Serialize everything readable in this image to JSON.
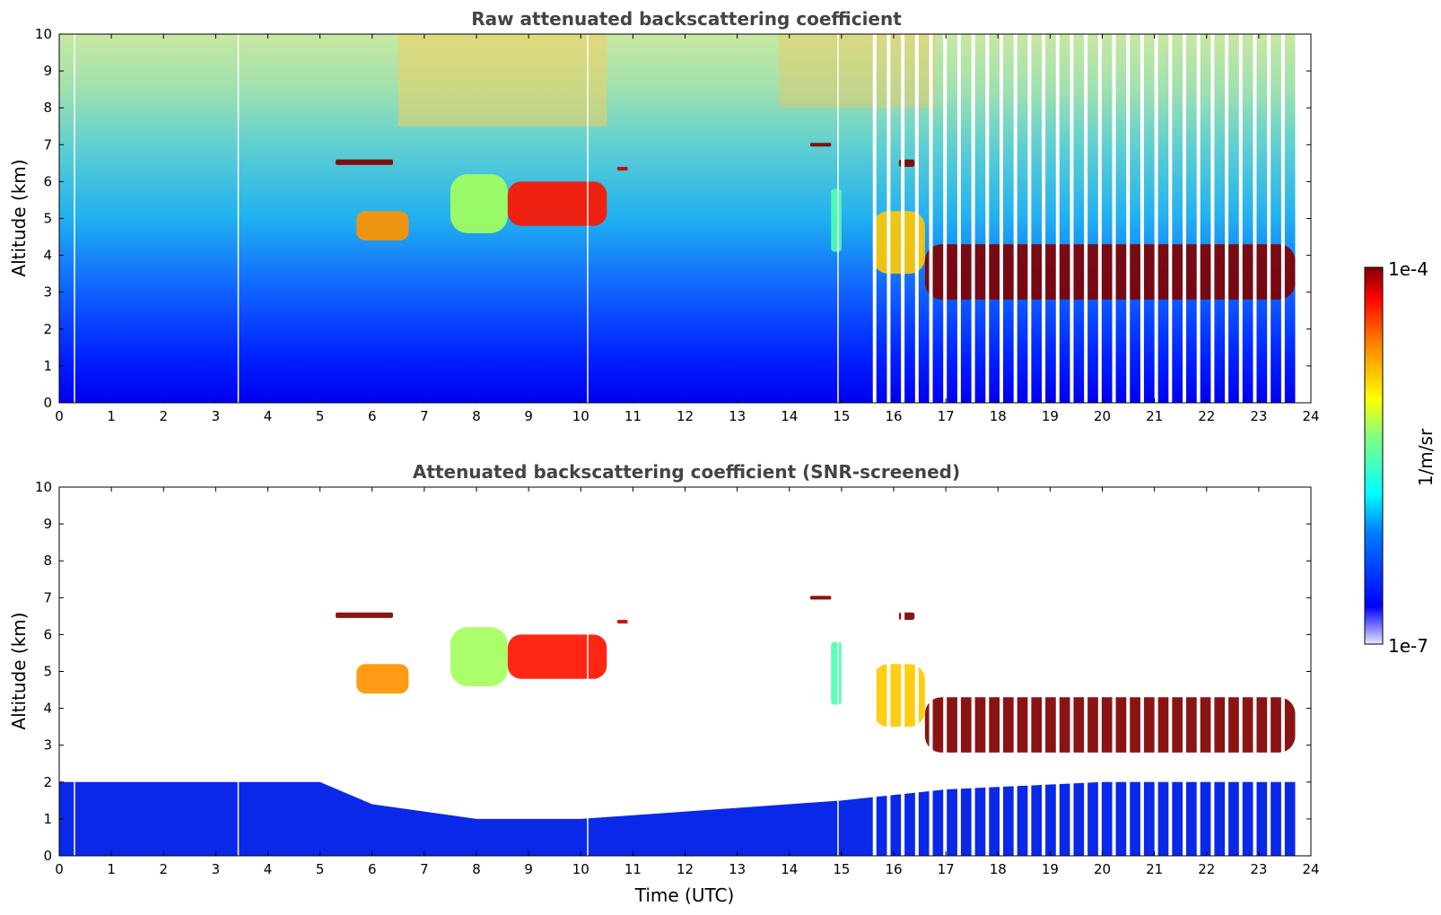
{
  "chart_data": [
    {
      "type": "heatmap",
      "title": "Raw attenuated backscattering coefficient",
      "xlabel": "",
      "ylabel": "Altitude (km)",
      "xlim": [
        0,
        24
      ],
      "ylim": [
        0,
        10
      ],
      "x_ticks": [
        "0",
        "1",
        "2",
        "3",
        "4",
        "5",
        "6",
        "7",
        "8",
        "9",
        "10",
        "11",
        "12",
        "13",
        "14",
        "15",
        "16",
        "17",
        "18",
        "19",
        "20",
        "21",
        "22",
        "23",
        "24"
      ],
      "y_ticks": [
        "0",
        "1",
        "2",
        "3",
        "4",
        "5",
        "6",
        "7",
        "8",
        "9",
        "10"
      ],
      "screened": false,
      "features": [
        {
          "t": [
            5.3,
            6.4
          ],
          "alt": [
            6.45,
            6.6
          ],
          "level": 1.0
        },
        {
          "t": [
            5.7,
            6.7
          ],
          "alt": [
            4.4,
            5.2
          ],
          "level": 0.78
        },
        {
          "t": [
            7.5,
            8.6
          ],
          "alt": [
            4.6,
            6.2
          ],
          "level": 0.58
        },
        {
          "t": [
            8.6,
            10.5
          ],
          "alt": [
            4.8,
            6.0
          ],
          "level": 0.9
        },
        {
          "t": [
            10.7,
            10.9
          ],
          "alt": [
            6.3,
            6.4
          ],
          "level": 0.95
        },
        {
          "t": [
            14.4,
            14.8
          ],
          "alt": [
            6.95,
            7.05
          ],
          "level": 1.0
        },
        {
          "t": [
            14.8,
            15.0
          ],
          "alt": [
            4.1,
            5.8
          ],
          "level": 0.5
        },
        {
          "t": [
            15.6,
            16.6
          ],
          "alt": [
            3.5,
            5.2
          ],
          "level": 0.72
        },
        {
          "t": [
            16.1,
            16.4
          ],
          "alt": [
            6.4,
            6.6
          ],
          "level": 1.0
        },
        {
          "t": [
            16.6,
            23.7
          ],
          "alt": [
            2.8,
            4.3
          ],
          "level": 1.0
        }
      ],
      "data_gaps_after_hour": 15.6
    },
    {
      "type": "heatmap",
      "title": "Attenuated backscattering coefficient (SNR-screened)",
      "xlabel": "Time (UTC)",
      "ylabel": "Altitude (km)",
      "xlim": [
        0,
        24
      ],
      "ylim": [
        0,
        10
      ],
      "x_ticks": [
        "0",
        "1",
        "2",
        "3",
        "4",
        "5",
        "6",
        "7",
        "8",
        "9",
        "10",
        "11",
        "12",
        "13",
        "14",
        "15",
        "16",
        "17",
        "18",
        "19",
        "20",
        "21",
        "22",
        "23",
        "24"
      ],
      "y_ticks": [
        "0",
        "1",
        "2",
        "3",
        "4",
        "5",
        "6",
        "7",
        "8",
        "9",
        "10"
      ],
      "screened": true,
      "boundary_layer_top_km": [
        [
          0,
          2.0
        ],
        [
          5,
          2.0
        ],
        [
          6,
          1.4
        ],
        [
          8,
          1.0
        ],
        [
          10,
          1.0
        ],
        [
          13,
          1.3
        ],
        [
          15,
          1.5
        ],
        [
          17,
          1.8
        ],
        [
          20,
          2.0
        ],
        [
          23.7,
          2.0
        ]
      ],
      "features": [
        {
          "t": [
            5.3,
            6.4
          ],
          "alt": [
            6.45,
            6.6
          ],
          "level": 1.0
        },
        {
          "t": [
            5.7,
            6.7
          ],
          "alt": [
            4.4,
            5.2
          ],
          "level": 0.78
        },
        {
          "t": [
            7.5,
            8.6
          ],
          "alt": [
            4.6,
            6.2
          ],
          "level": 0.58
        },
        {
          "t": [
            8.6,
            10.5
          ],
          "alt": [
            4.8,
            6.0
          ],
          "level": 0.9
        },
        {
          "t": [
            10.7,
            10.9
          ],
          "alt": [
            6.3,
            6.4
          ],
          "level": 0.95
        },
        {
          "t": [
            14.4,
            14.8
          ],
          "alt": [
            6.95,
            7.05
          ],
          "level": 1.0
        },
        {
          "t": [
            14.8,
            15.0
          ],
          "alt": [
            4.1,
            5.8
          ],
          "level": 0.5
        },
        {
          "t": [
            15.6,
            16.6
          ],
          "alt": [
            3.5,
            5.2
          ],
          "level": 0.72
        },
        {
          "t": [
            16.1,
            16.4
          ],
          "alt": [
            6.4,
            6.6
          ],
          "level": 1.0
        },
        {
          "t": [
            16.6,
            23.7
          ],
          "alt": [
            2.8,
            4.3
          ],
          "level": 1.0
        }
      ],
      "data_gaps_after_hour": 15.6
    }
  ],
  "colorbar": {
    "label": "1/m/sr",
    "max_label": "1e-4",
    "min_label": "1e-7",
    "scale": "log",
    "colormap": "jet"
  }
}
